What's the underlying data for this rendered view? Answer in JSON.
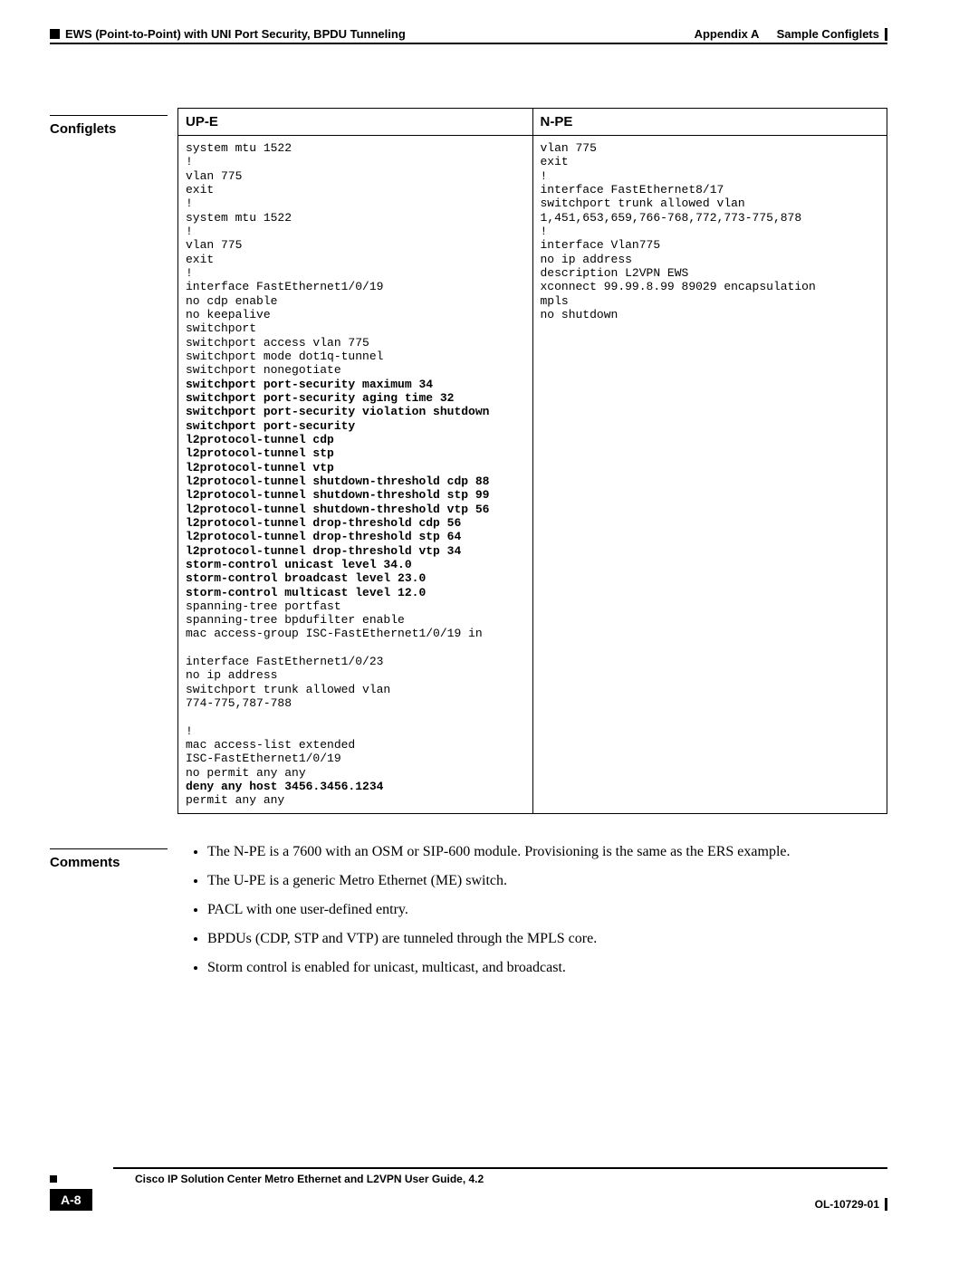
{
  "header": {
    "appendix_label": "Appendix A",
    "appendix_title": "Sample Configlets",
    "section_title": "EWS (Point-to-Point) with UNI Port Security, BPDU Tunneling"
  },
  "configlets": {
    "label": "Configlets",
    "col1_header": "UP-E",
    "col2_header": "N-PE",
    "upe_lines": [
      {
        "t": "system mtu 1522",
        "b": false
      },
      {
        "t": "!",
        "b": false
      },
      {
        "t": "vlan 775",
        "b": false
      },
      {
        "t": "exit",
        "b": false
      },
      {
        "t": "!",
        "b": false
      },
      {
        "t": "system mtu 1522",
        "b": false
      },
      {
        "t": "!",
        "b": false
      },
      {
        "t": "vlan 775",
        "b": false
      },
      {
        "t": "exit",
        "b": false
      },
      {
        "t": "!",
        "b": false
      },
      {
        "t": "interface FastEthernet1/0/19",
        "b": false
      },
      {
        "t": "no cdp enable",
        "b": false
      },
      {
        "t": "no keepalive",
        "b": false
      },
      {
        "t": "switchport",
        "b": false
      },
      {
        "t": "switchport access vlan 775",
        "b": false
      },
      {
        "t": "switchport mode dot1q-tunnel",
        "b": false
      },
      {
        "t": "switchport nonegotiate",
        "b": false
      },
      {
        "t": "switchport port-security maximum 34",
        "b": true
      },
      {
        "t": "switchport port-security aging time 32",
        "b": true
      },
      {
        "t": "switchport port-security violation shutdown",
        "b": true
      },
      {
        "t": "switchport port-security",
        "b": true
      },
      {
        "t": "l2protocol-tunnel cdp",
        "b": true
      },
      {
        "t": "l2protocol-tunnel stp",
        "b": true
      },
      {
        "t": "l2protocol-tunnel vtp",
        "b": true
      },
      {
        "t": "l2protocol-tunnel shutdown-threshold cdp 88",
        "b": true
      },
      {
        "t": "l2protocol-tunnel shutdown-threshold stp 99",
        "b": true
      },
      {
        "t": "l2protocol-tunnel shutdown-threshold vtp 56",
        "b": true
      },
      {
        "t": "l2protocol-tunnel drop-threshold cdp 56",
        "b": true
      },
      {
        "t": "l2protocol-tunnel drop-threshold stp 64",
        "b": true
      },
      {
        "t": "l2protocol-tunnel drop-threshold vtp 34",
        "b": true
      },
      {
        "t": "storm-control unicast level 34.0",
        "b": true
      },
      {
        "t": "storm-control broadcast level 23.0",
        "b": true
      },
      {
        "t": "storm-control multicast level 12.0",
        "b": true
      },
      {
        "t": "spanning-tree portfast",
        "b": false
      },
      {
        "t": "spanning-tree bpdufilter enable",
        "b": false
      },
      {
        "t": "mac access-group ISC-FastEthernet1/0/19 in",
        "b": false
      },
      {
        "t": "",
        "b": false
      },
      {
        "t": "interface FastEthernet1/0/23",
        "b": false
      },
      {
        "t": "no ip address",
        "b": false
      },
      {
        "t": "switchport trunk allowed vlan",
        "b": false
      },
      {
        "t": "774-775,787-788",
        "b": false
      },
      {
        "t": "",
        "b": false
      },
      {
        "t": "!",
        "b": false
      },
      {
        "t": "mac access-list extended",
        "b": false
      },
      {
        "t": "ISC-FastEthernet1/0/19",
        "b": false
      },
      {
        "t": "no permit any any",
        "b": false
      },
      {
        "t": "deny any host 3456.3456.1234",
        "b": true
      },
      {
        "t": "permit any any",
        "b": false
      }
    ],
    "npe_lines": [
      {
        "t": "vlan 775",
        "b": false
      },
      {
        "t": "exit",
        "b": false
      },
      {
        "t": "!",
        "b": false
      },
      {
        "t": "interface FastEthernet8/17",
        "b": false
      },
      {
        "t": "switchport trunk allowed vlan",
        "b": false
      },
      {
        "t": "1,451,653,659,766-768,772,773-775,878",
        "b": false
      },
      {
        "t": "!",
        "b": false
      },
      {
        "t": "interface Vlan775",
        "b": false
      },
      {
        "t": "no ip address",
        "b": false
      },
      {
        "t": "description L2VPN EWS",
        "b": false
      },
      {
        "t": "xconnect 99.99.8.99 89029 encapsulation",
        "b": false
      },
      {
        "t": "mpls",
        "b": false
      },
      {
        "t": "no shutdown",
        "b": false
      }
    ]
  },
  "comments": {
    "label": "Comments",
    "items": [
      "The N-PE is a 7600 with an OSM or SIP-600 module. Provisioning is the same as the ERS example.",
      "The U-PE is a generic Metro Ethernet (ME) switch.",
      "PACL with one user-defined entry.",
      "BPDUs (CDP, STP and VTP) are tunneled through the MPLS core.",
      "Storm control is enabled for unicast, multicast, and broadcast."
    ]
  },
  "footer": {
    "guide_title": "Cisco IP Solution Center Metro Ethernet and L2VPN User Guide, 4.2",
    "page_number": "A-8",
    "doc_id": "OL-10729-01"
  }
}
